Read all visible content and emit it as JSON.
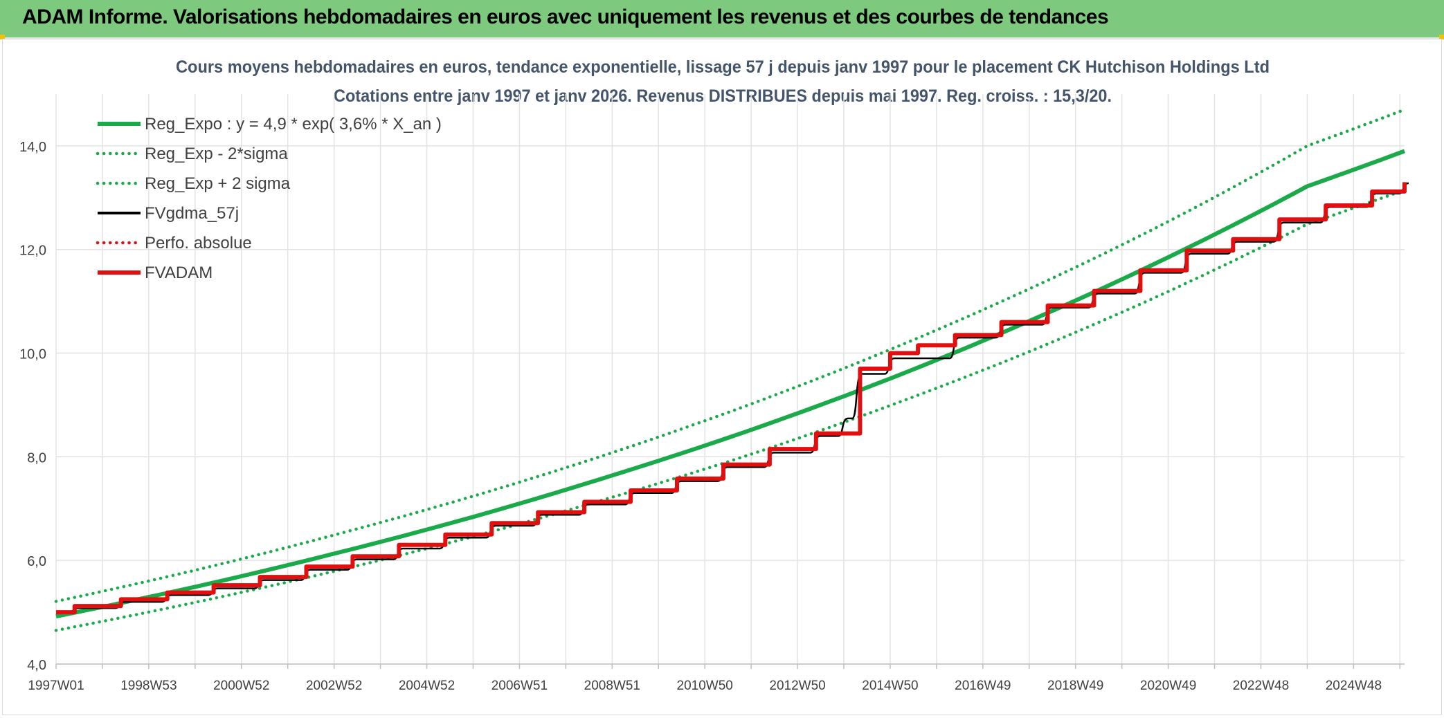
{
  "header": {
    "title": "ADAM Informe. Valorisations hebdomadaires en euros avec uniquement les revenus et des courbes de tendances"
  },
  "colors": {
    "header_bg": "#7dc97d",
    "reg_green": "#1aaa4a",
    "fvgdma_black": "#000000",
    "fvadam_red": "#e01010",
    "grid": "#e6e6e6",
    "text": "#44546a"
  },
  "chart_data": {
    "type": "line",
    "title_line1": "Cours moyens hebdomadaires en euros, tendance exponentielle, lissage 57 j depuis janv 1997 pour le placement CK Hutchison Holdings Ltd",
    "title_line2": "Cotations entre janv 1997 et janv 2026. Revenus DISTRIBUES depuis mai 1997. Reg. croiss. : 15,3/20.",
    "xlabel": "",
    "ylabel": "",
    "ylim": [
      4.0,
      15.0
    ],
    "xlim": [
      1997.0,
      2026.1
    ],
    "y_ticks": [
      "4,0",
      "6,0",
      "8,0",
      "10,0",
      "12,0",
      "14,0"
    ],
    "y_tick_values": [
      4,
      6,
      8,
      10,
      12,
      14
    ],
    "x_ticks": [
      {
        "label": "1997W01",
        "x": 1997.0
      },
      {
        "label": "1998W53",
        "x": 1999.0
      },
      {
        "label": "2000W52",
        "x": 2001.0
      },
      {
        "label": "2002W52",
        "x": 2003.0
      },
      {
        "label": "2004W52",
        "x": 2005.0
      },
      {
        "label": "2006W51",
        "x": 2007.0
      },
      {
        "label": "2008W51",
        "x": 2009.0
      },
      {
        "label": "2010W50",
        "x": 2011.0
      },
      {
        "label": "2012W50",
        "x": 2013.0
      },
      {
        "label": "2014W50",
        "x": 2015.0
      },
      {
        "label": "2016W49",
        "x": 2017.0
      },
      {
        "label": "2018W49",
        "x": 2019.0
      },
      {
        "label": "2020W49",
        "x": 2021.0
      },
      {
        "label": "2022W48",
        "x": 2023.0
      },
      {
        "label": "2024W48",
        "x": 2025.0
      }
    ],
    "grid": true,
    "legend_position": "top-left",
    "series": [
      {
        "name": "Reg_Expo : y = 4,9 * exp( 3,6% *  X_an )",
        "style": "solid-thick",
        "color": "#1aaa4a",
        "x": [
          1997.0,
          2000.0,
          2003.0,
          2006.0,
          2009.0,
          2012.0,
          2015.0,
          2018.0,
          2021.0,
          2024.0,
          2026.1
        ],
        "values": [
          4.92,
          5.49,
          6.13,
          6.84,
          7.64,
          8.52,
          9.51,
          10.62,
          11.85,
          13.22,
          13.9
        ]
      },
      {
        "name": "Reg_Exp - 2*sigma",
        "style": "dotted",
        "color": "#1aaa4a",
        "x": [
          1997.0,
          2000.0,
          2003.0,
          2006.0,
          2009.0,
          2012.0,
          2015.0,
          2018.0,
          2021.0,
          2024.0,
          2026.1
        ],
        "values": [
          4.65,
          5.19,
          5.79,
          6.46,
          7.22,
          8.05,
          8.99,
          10.03,
          11.19,
          12.49,
          13.15
        ]
      },
      {
        "name": "Reg_Exp + 2 sigma",
        "style": "dotted",
        "color": "#1aaa4a",
        "x": [
          1997.0,
          2000.0,
          2003.0,
          2006.0,
          2009.0,
          2012.0,
          2015.0,
          2018.0,
          2021.0,
          2024.0,
          2026.1
        ],
        "values": [
          5.21,
          5.81,
          6.49,
          7.24,
          8.08,
          9.02,
          10.07,
          11.24,
          12.54,
          14.0,
          14.7
        ]
      },
      {
        "name": "FVgdma_57j",
        "style": "solid-thin",
        "color": "#000000",
        "x": [
          1997.0,
          1997.4,
          1998.4,
          1999.4,
          2000.4,
          2001.4,
          2002.4,
          2003.4,
          2004.4,
          2005.4,
          2006.4,
          2007.4,
          2008.4,
          2009.4,
          2010.4,
          2011.4,
          2012.4,
          2013.4,
          2014.0,
          2014.3,
          2015.0,
          2016.4,
          2017.4,
          2018.4,
          2019.4,
          2020.4,
          2021.4,
          2022.4,
          2023.4,
          2024.4,
          2025.4,
          2026.1
        ],
        "values": [
          5.0,
          5.08,
          5.2,
          5.33,
          5.46,
          5.62,
          5.82,
          6.02,
          6.23,
          6.44,
          6.67,
          6.88,
          7.08,
          7.3,
          7.53,
          7.8,
          8.08,
          8.4,
          8.74,
          9.6,
          9.9,
          10.3,
          10.55,
          10.88,
          11.15,
          11.55,
          11.92,
          12.15,
          12.52,
          12.82,
          13.08,
          13.28
        ]
      },
      {
        "name": "Perfo. absolue",
        "style": "dotted",
        "color": "#e01010",
        "x": [],
        "values": []
      },
      {
        "name": "FVADAM",
        "style": "step-thick",
        "color": "#e01010",
        "x": [
          1997.0,
          1997.4,
          1998.4,
          1999.4,
          2000.4,
          2001.4,
          2002.4,
          2003.4,
          2004.4,
          2005.4,
          2006.4,
          2007.4,
          2008.4,
          2009.4,
          2010.4,
          2011.4,
          2012.4,
          2013.4,
          2014.35,
          2015.0,
          2015.6,
          2016.4,
          2017.4,
          2018.4,
          2019.4,
          2020.4,
          2021.4,
          2022.4,
          2023.4,
          2024.4,
          2025.4,
          2026.1
        ],
        "values": [
          5.0,
          5.12,
          5.25,
          5.38,
          5.52,
          5.68,
          5.88,
          6.08,
          6.3,
          6.5,
          6.72,
          6.93,
          7.13,
          7.35,
          7.58,
          7.85,
          8.15,
          8.45,
          9.7,
          10.0,
          10.15,
          10.35,
          10.6,
          10.92,
          11.2,
          11.6,
          11.98,
          12.2,
          12.58,
          12.85,
          13.12,
          13.3
        ]
      }
    ]
  }
}
